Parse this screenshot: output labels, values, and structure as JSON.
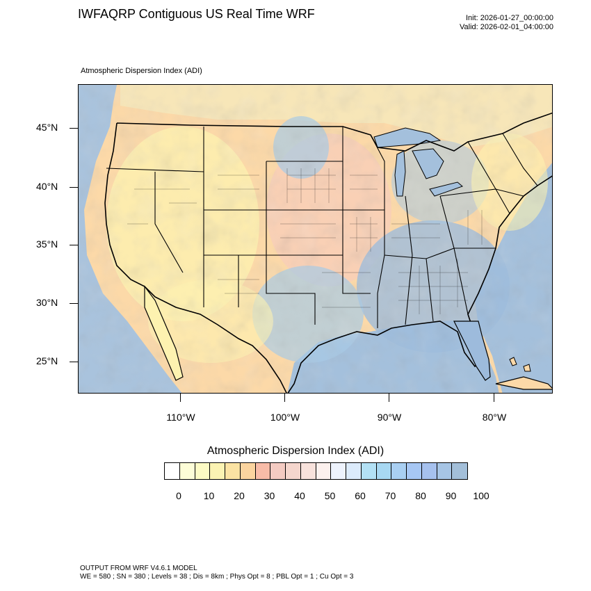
{
  "header": {
    "title": "IWFAQRP Contiguous US Real Time WRF",
    "init": "Init: 2026-01-27_00:00:00",
    "valid": "Valid: 2026-02-01_04:00:00"
  },
  "map": {
    "subtitle": "Atmospheric Dispersion Index   (ADI)",
    "lat_labels": [
      "45°N",
      "40°N",
      "35°N",
      "30°N",
      "25°N"
    ],
    "lon_labels": [
      "110°W",
      "100°W",
      "90°W",
      "80°W"
    ],
    "colors": {
      "ocean": "#a4c0dc",
      "land_low": "#fdf2b0",
      "land_mid": "#fcd9a8",
      "land_pink": "#f6c8c0",
      "land_blue": "#a8cbe6",
      "land_blue_deep": "#9dbbdc"
    }
  },
  "colorbar": {
    "title": "Atmospheric Dispersion Index  (ADI)",
    "labels": [
      "0",
      "10",
      "20",
      "30",
      "40",
      "50",
      "60",
      "70",
      "80",
      "90",
      "100"
    ],
    "colors": [
      "#ffffff",
      "#fdfdd7",
      "#fdfbc4",
      "#fbf3b3",
      "#fbe3a3",
      "#fbd49f",
      "#f8bca8",
      "#f4cbc2",
      "#f5d6cd",
      "#f8e2dc",
      "#fcf1ee",
      "#eef3fd",
      "#dcebfb",
      "#b3e1f5",
      "#a8d8f2",
      "#a9cff2",
      "#a7c7f4",
      "#a6c1ee",
      "#a7c5e5",
      "#a3bfd9"
    ]
  },
  "footer": {
    "line1": "OUTPUT FROM WRF V4.6.1 MODEL",
    "line2": "WE = 580 ; SN = 380 ; Levels = 38 ; Dis = 8km ; Phys Opt = 8 ; PBL Opt = 1 ; Cu Opt = 3"
  }
}
